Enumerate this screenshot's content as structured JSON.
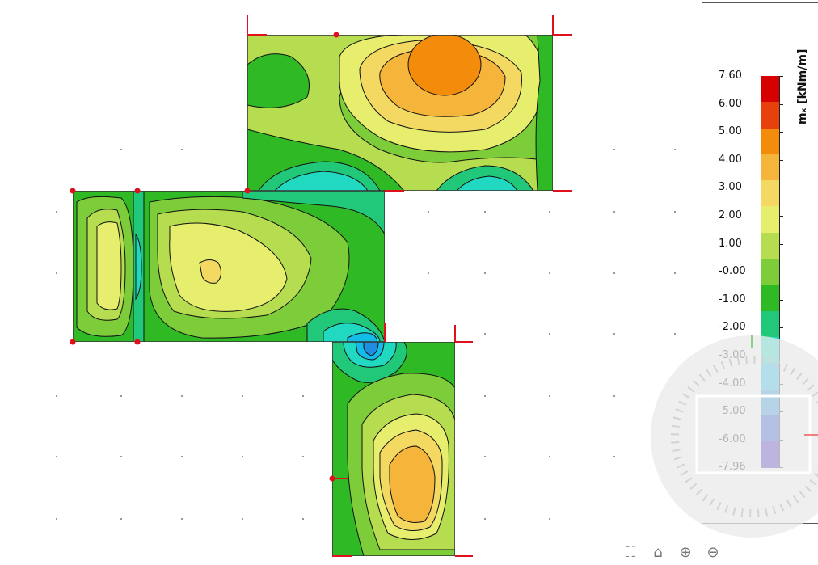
{
  "legend": {
    "title": "mₓ [kNm/m]",
    "levels": [
      "7.60",
      "6.00",
      "5.00",
      "4.00",
      "3.00",
      "2.00",
      "1.00",
      "-0.00",
      "-1.00",
      "-2.00",
      "-3.00",
      "-4.00",
      "-5.00",
      "-6.00",
      "-7.96"
    ],
    "colors": [
      "#d60000",
      "#e8400a",
      "#f28c0a",
      "#f5b53b",
      "#f3d861",
      "#e7ee6e",
      "#b6dd4f",
      "#7dcc3a",
      "#2fba25",
      "#22c87a",
      "#21d9c1",
      "#14bde8",
      "#1f8ee0",
      "#1a48d4",
      "#3818b8"
    ]
  },
  "icons": {
    "compass": "navigation-compass-icon",
    "toolbar": [
      "zoom-extents-icon",
      "home-view-icon",
      "zoom-in-icon",
      "zoom-out-icon"
    ]
  }
}
